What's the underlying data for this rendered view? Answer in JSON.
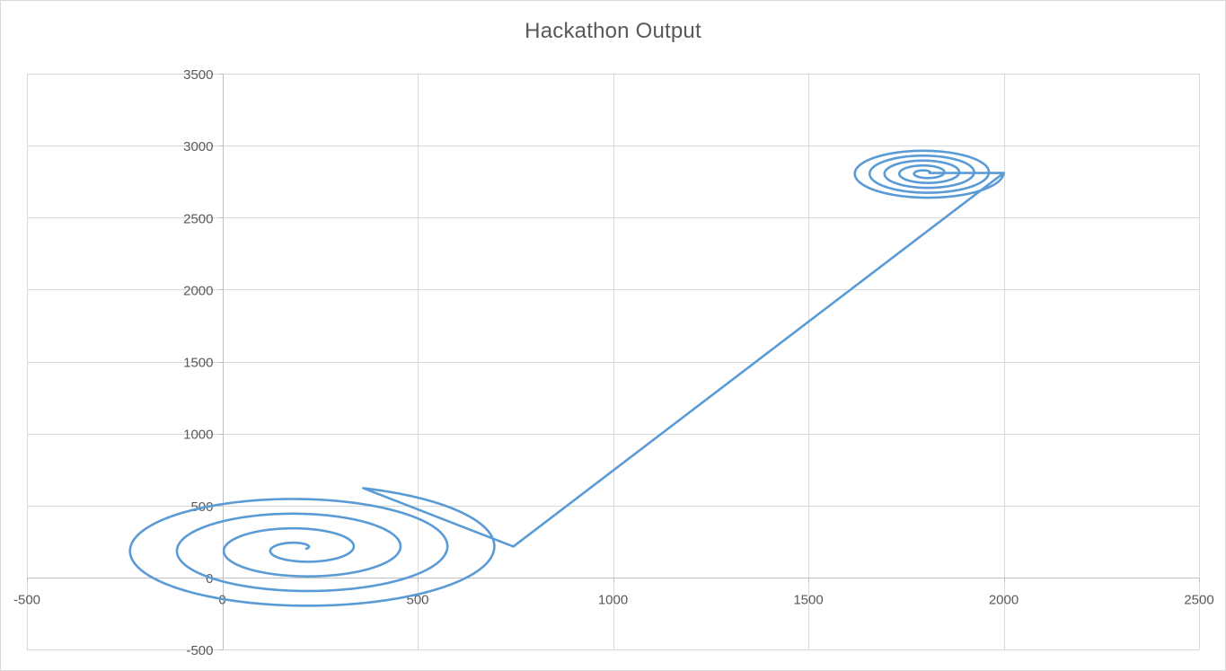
{
  "chart_data": {
    "type": "scatter",
    "title": "Hackathon Output",
    "xlabel": "",
    "ylabel": "",
    "xlim": [
      -500,
      2500
    ],
    "ylim": [
      -500,
      3500
    ],
    "xticks": [
      -500,
      0,
      500,
      1000,
      1500,
      2000,
      2500
    ],
    "yticks": [
      -500,
      0,
      500,
      1000,
      1500,
      2000,
      2500,
      3000,
      3500
    ],
    "grid": true,
    "legend": "none",
    "line_color": "#5b9bd5",
    "series": [
      {
        "style": "smooth-line-no-markers",
        "segments": [
          {
            "shape": "spiral",
            "center": [
              200,
              200
            ],
            "turns": 4.2,
            "start_radius": 15,
            "end_radius": 520,
            "y_scale": 0.85
          },
          {
            "shape": "line",
            "points": [
              [
                745,
                215
              ],
              [
                2000,
                2810
              ]
            ]
          },
          {
            "shape": "spiral",
            "center": [
              1800,
              2810
            ],
            "turns": 5,
            "start_radius": 10,
            "end_radius": 200,
            "y_scale": 0.9
          }
        ]
      }
    ]
  }
}
